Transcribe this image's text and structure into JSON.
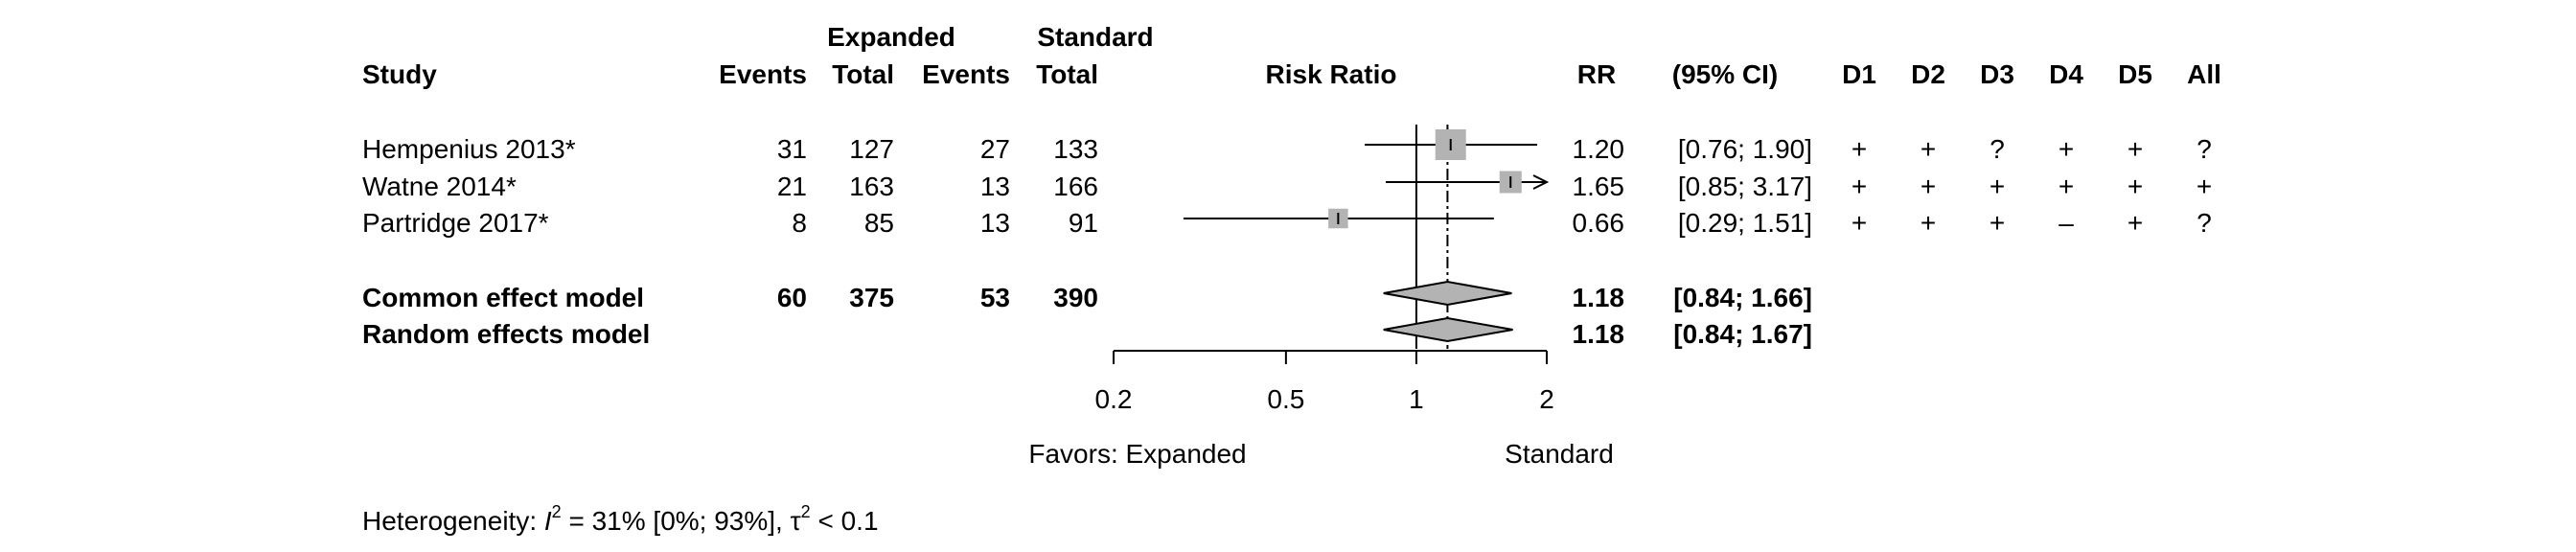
{
  "chart_data": {
    "type": "forest",
    "header": {
      "group1": "Expanded",
      "group2": "Standard",
      "study": "Study",
      "events": "Events",
      "total": "Total",
      "plot": "Risk Ratio",
      "rr": "RR",
      "ci": "(95% CI)",
      "domains": [
        "D1",
        "D2",
        "D3",
        "D4",
        "D5",
        "All"
      ]
    },
    "studies": [
      {
        "name": "Hempenius 2013*",
        "e1": "31",
        "n1": "127",
        "e2": "27",
        "n2": "133",
        "rr": 1.2,
        "lo": 0.76,
        "hi": 1.9,
        "rr_text": "1.20",
        "ci_text": "[0.76; 1.90]",
        "weight": 1.0,
        "domains": [
          "+",
          "+",
          "?",
          "+",
          "+",
          "?"
        ]
      },
      {
        "name": "Watne 2014*",
        "e1": "21",
        "n1": "163",
        "e2": "13",
        "n2": "166",
        "rr": 1.65,
        "lo": 0.85,
        "hi": 3.17,
        "rr_text": "1.65",
        "ci_text": "[0.85; 3.17]",
        "weight": 0.72,
        "domains": [
          "+",
          "+",
          "+",
          "+",
          "+",
          "+"
        ]
      },
      {
        "name": "Partridge 2017*",
        "e1": "8",
        "n1": "85",
        "e2": "13",
        "n2": "91",
        "rr": 0.66,
        "lo": 0.29,
        "hi": 1.51,
        "rr_text": "0.66",
        "ci_text": "[0.29; 1.51]",
        "weight": 0.64,
        "domains": [
          "+",
          "+",
          "+",
          "–",
          "+",
          "?"
        ]
      }
    ],
    "pooled": [
      {
        "name": "Common effect model",
        "e1": "60",
        "n1": "375",
        "e2": "53",
        "n2": "390",
        "rr": 1.18,
        "lo": 0.84,
        "hi": 1.66,
        "rr_text": "1.18",
        "ci_text": "[0.84; 1.66]"
      },
      {
        "name": "Random effects model",
        "e1": "",
        "n1": "",
        "e2": "",
        "n2": "",
        "rr": 1.18,
        "lo": 0.84,
        "hi": 1.67,
        "rr_text": "1.18",
        "ci_text": "[0.84; 1.67]"
      }
    ],
    "x_axis": {
      "scale": "log",
      "range": [
        0.2,
        2
      ],
      "ticks": [
        0.2,
        0.5,
        1,
        2
      ],
      "tick_labels": [
        "0.2",
        "0.5",
        "1",
        "2"
      ],
      "null_value": 1,
      "label_left": "Favors: Expanded",
      "label_right": "Standard"
    },
    "heterogeneity": {
      "prefix": "Heterogeneity: ",
      "stat": "I",
      "sup": "2",
      "rest": " = 31% [0%; 93%], ",
      "tau": "τ",
      "tau_sup": "2",
      "tau_rest": " < 0.1"
    },
    "colors": {
      "square": "#b3b3b3",
      "diamond": "#b3b3b3",
      "line": "#000000"
    }
  }
}
